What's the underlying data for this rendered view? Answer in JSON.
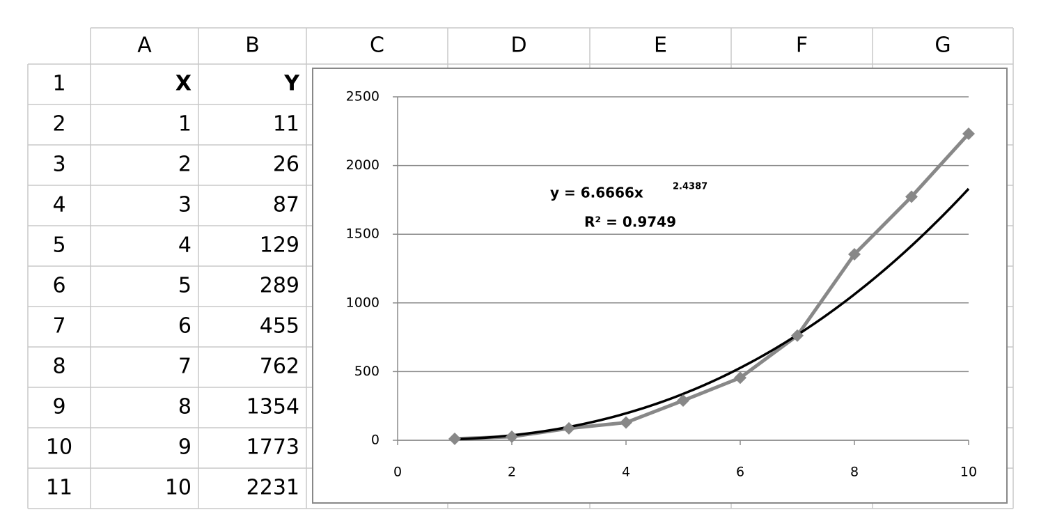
{
  "spreadsheet": {
    "columns": [
      "A",
      "B",
      "C",
      "D",
      "E",
      "F",
      "G"
    ],
    "rows": [
      {
        "row": 1,
        "cells": [
          "X",
          "Y"
        ]
      },
      {
        "row": 2,
        "cells": [
          1,
          11
        ]
      },
      {
        "row": 3,
        "cells": [
          2,
          26
        ]
      },
      {
        "row": 4,
        "cells": [
          3,
          87
        ]
      },
      {
        "row": 5,
        "cells": [
          4,
          129
        ]
      },
      {
        "row": 6,
        "cells": [
          5,
          289
        ]
      },
      {
        "row": 7,
        "cells": [
          6,
          455
        ]
      },
      {
        "row": 8,
        "cells": [
          7,
          762
        ]
      },
      {
        "row": 9,
        "cells": [
          8,
          1354
        ]
      },
      {
        "row": 10,
        "cells": [
          9,
          1773
        ]
      },
      {
        "row": 11,
        "cells": [
          10,
          2231
        ]
      }
    ]
  },
  "chart_data": {
    "type": "line",
    "x": [
      1,
      2,
      3,
      4,
      5,
      6,
      7,
      8,
      9,
      10
    ],
    "values": [
      11,
      26,
      87,
      129,
      289,
      455,
      762,
      1354,
      1773,
      2231
    ],
    "color": "#888888",
    "xlim": [
      0,
      10
    ],
    "xticks": [
      0,
      2,
      4,
      6,
      8,
      10
    ],
    "ylim": [
      0,
      2500
    ],
    "yticks": [
      0,
      500,
      1000,
      1500,
      2000,
      2500
    ],
    "grid": true,
    "trendline": {
      "type": "power",
      "coefficient": 6.6666,
      "exponent": 2.4387,
      "r_squared": 0.9749,
      "color": "#000000",
      "equation_label": "y = 6.6666x",
      "r_squared_label": "R² = 0.9749"
    }
  }
}
